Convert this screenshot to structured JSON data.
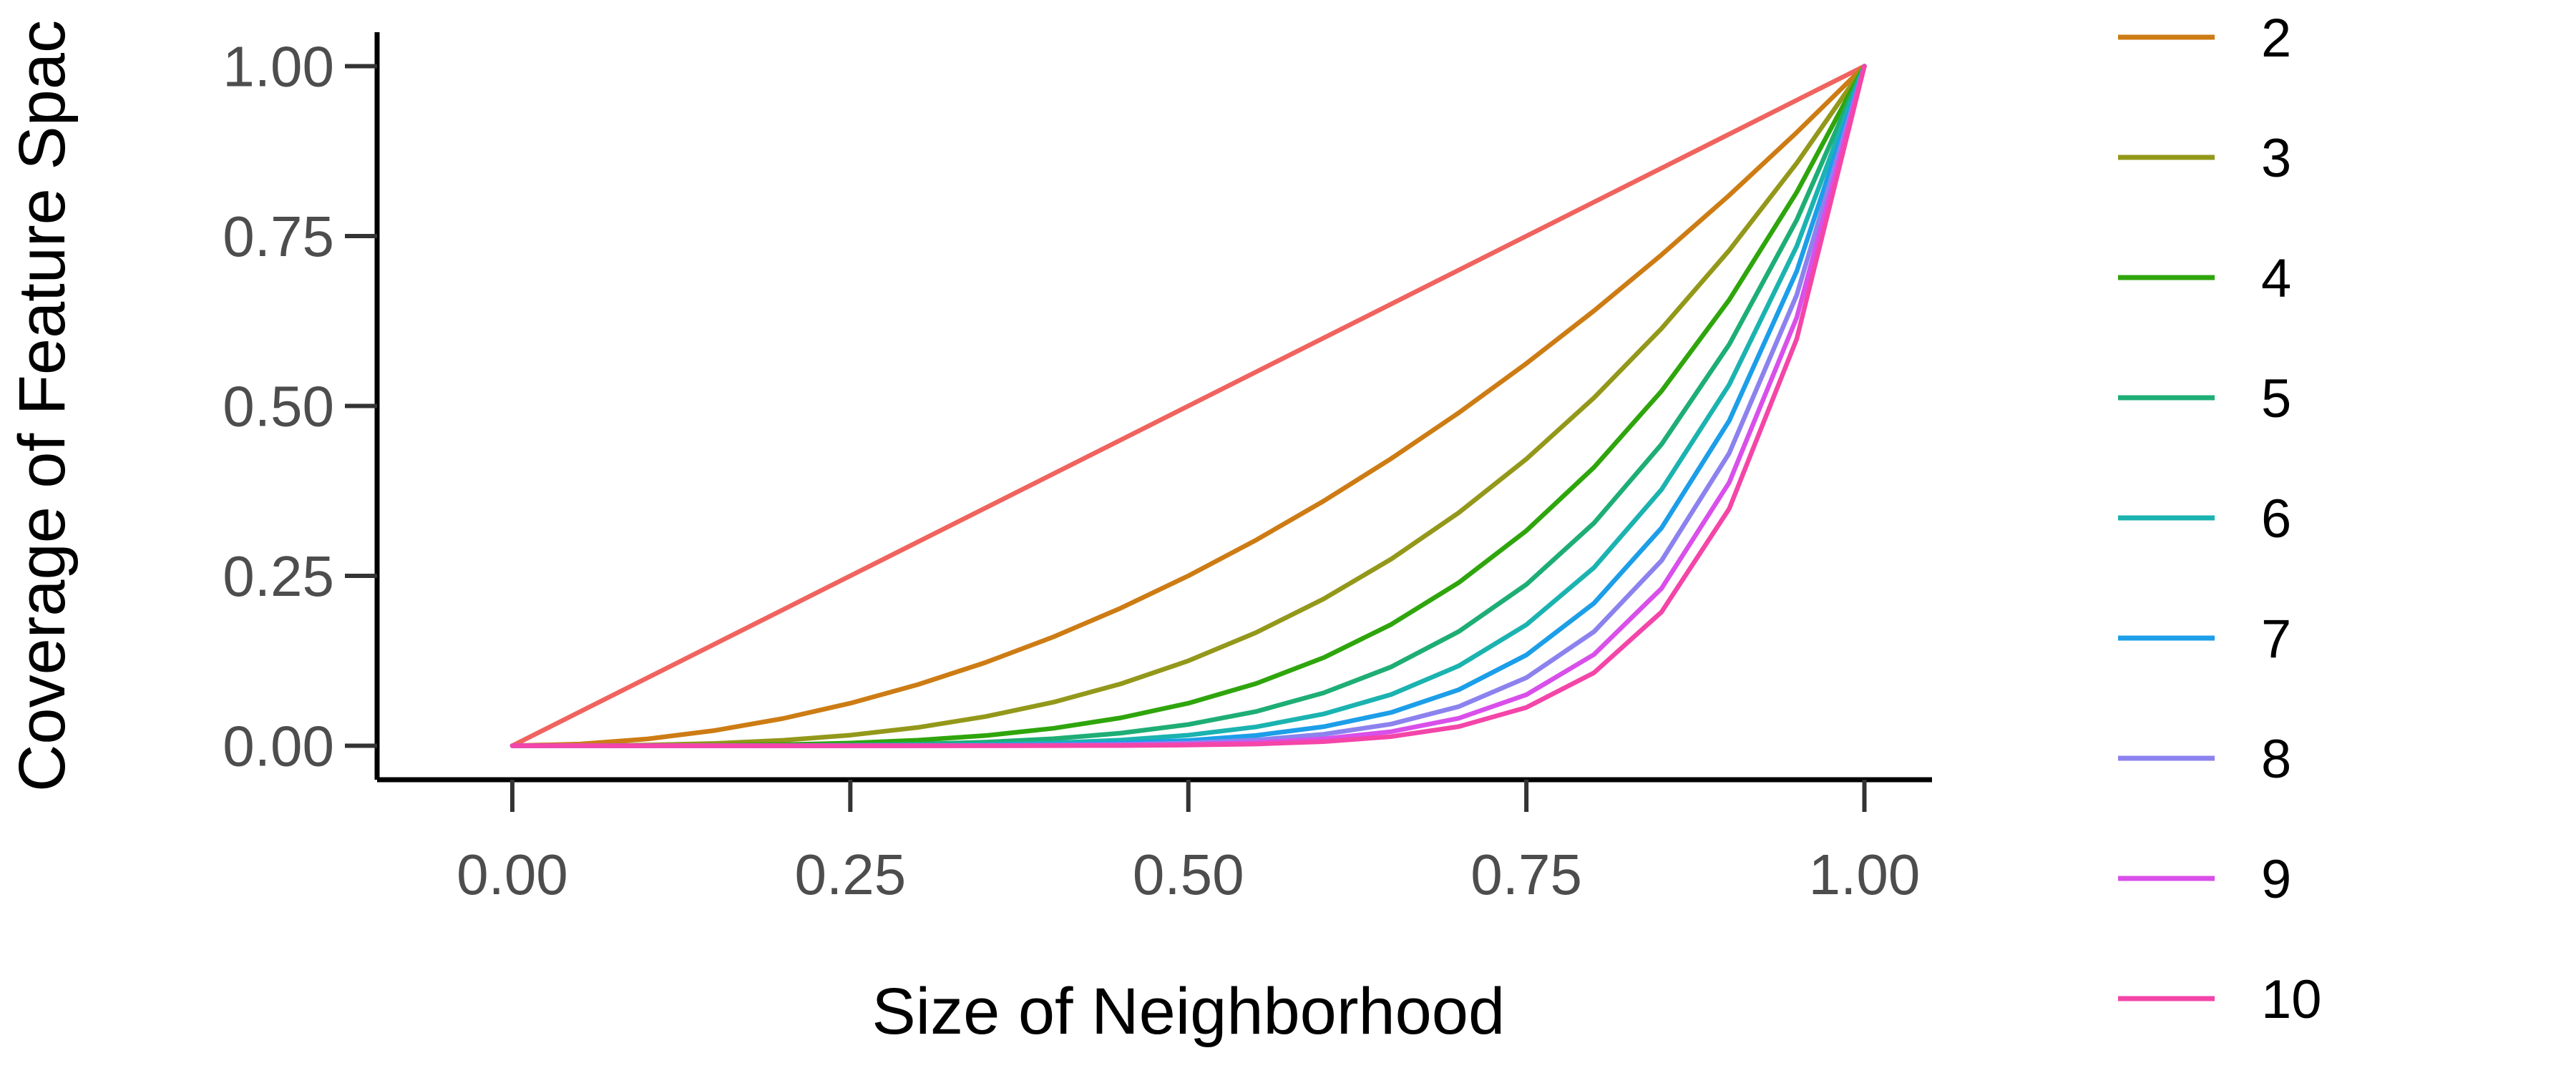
{
  "chart_data": {
    "type": "line",
    "xlabel": "Size of Neighborhood",
    "ylabel": "Coverage of Feature Spac",
    "xlim": [
      -0.1,
      1.05
    ],
    "ylim": [
      -0.05,
      1.05
    ],
    "x_ticks": [
      "0.00",
      "0.25",
      "0.50",
      "0.75",
      "1.00"
    ],
    "y_ticks": [
      "0.00",
      "0.25",
      "0.50",
      "0.75",
      "1.00"
    ],
    "grid": false,
    "legend_position": "right",
    "x": [
      0.0,
      0.05,
      0.1,
      0.15,
      0.2,
      0.25,
      0.3,
      0.35,
      0.4,
      0.45,
      0.5,
      0.55,
      0.6,
      0.65,
      0.7,
      0.75,
      0.8,
      0.85,
      0.9,
      0.95,
      1.0
    ],
    "series": [
      {
        "name": "",
        "color": "#F0635E",
        "values": [
          0.0,
          0.05,
          0.1,
          0.15,
          0.2,
          0.25,
          0.3,
          0.35,
          0.4,
          0.45,
          0.5,
          0.55,
          0.6,
          0.65,
          0.7,
          0.75,
          0.8,
          0.85,
          0.9,
          0.95,
          1.0
        ]
      },
      {
        "name": "2",
        "color": "#CD7C14",
        "values": [
          0.0,
          0.0025,
          0.01,
          0.0225,
          0.04,
          0.0625,
          0.09,
          0.1225,
          0.16,
          0.2025,
          0.25,
          0.3025,
          0.36,
          0.4225,
          0.49,
          0.5625,
          0.64,
          0.7225,
          0.81,
          0.9025,
          1.0
        ]
      },
      {
        "name": "3",
        "color": "#93981A",
        "values": [
          0.0,
          0.0001,
          0.001,
          0.0034,
          0.008,
          0.0156,
          0.027,
          0.0429,
          0.064,
          0.0911,
          0.125,
          0.1664,
          0.216,
          0.2746,
          0.343,
          0.4219,
          0.512,
          0.6141,
          0.729,
          0.8574,
          1.0
        ]
      },
      {
        "name": "4",
        "color": "#2FA50C",
        "values": [
          0.0,
          0.0,
          0.0001,
          0.0005,
          0.0016,
          0.0039,
          0.0081,
          0.015,
          0.0256,
          0.041,
          0.0625,
          0.0915,
          0.1296,
          0.1785,
          0.2401,
          0.3164,
          0.4096,
          0.522,
          0.6561,
          0.8145,
          1.0
        ]
      },
      {
        "name": "5",
        "color": "#1EAE75",
        "values": [
          0.0,
          0.0,
          0.0,
          0.0001,
          0.0003,
          0.001,
          0.0024,
          0.0053,
          0.0102,
          0.0185,
          0.0313,
          0.0503,
          0.0778,
          0.116,
          0.1681,
          0.2373,
          0.3277,
          0.4437,
          0.5905,
          0.7738,
          1.0
        ]
      },
      {
        "name": "6",
        "color": "#1BB3B0",
        "values": [
          0.0,
          0.0,
          0.0,
          0.0,
          0.0001,
          0.0002,
          0.0007,
          0.0018,
          0.0041,
          0.0083,
          0.0156,
          0.0277,
          0.0467,
          0.0754,
          0.1176,
          0.178,
          0.2621,
          0.3771,
          0.5314,
          0.7351,
          1.0
        ]
      },
      {
        "name": "7",
        "color": "#1C9EE8",
        "values": [
          0.0,
          0.0,
          0.0,
          0.0,
          0.0,
          0.0001,
          0.0002,
          0.0006,
          0.0016,
          0.0037,
          0.0078,
          0.0152,
          0.028,
          0.049,
          0.0824,
          0.1335,
          0.2097,
          0.3206,
          0.4783,
          0.6983,
          1.0
        ]
      },
      {
        "name": "8",
        "color": "#8C82EE",
        "values": [
          0.0,
          0.0,
          0.0,
          0.0,
          0.0,
          0.0,
          0.0001,
          0.0002,
          0.0007,
          0.0017,
          0.0039,
          0.0084,
          0.0168,
          0.0319,
          0.0576,
          0.1001,
          0.1678,
          0.2725,
          0.4305,
          0.6634,
          1.0
        ]
      },
      {
        "name": "9",
        "color": "#D94FEA",
        "values": [
          0.0,
          0.0,
          0.0,
          0.0,
          0.0,
          0.0,
          0.0,
          0.0001,
          0.0003,
          0.0008,
          0.002,
          0.0046,
          0.0101,
          0.0207,
          0.0404,
          0.0751,
          0.1342,
          0.2316,
          0.3874,
          0.6302,
          1.0
        ]
      },
      {
        "name": "10",
        "color": "#F445A8",
        "values": [
          0.0,
          0.0,
          0.0,
          0.0,
          0.0,
          0.0,
          0.0,
          0.0,
          0.0001,
          0.0003,
          0.001,
          0.0025,
          0.006,
          0.0135,
          0.0282,
          0.0563,
          0.1074,
          0.1969,
          0.3487,
          0.5987,
          1.0
        ]
      }
    ]
  }
}
